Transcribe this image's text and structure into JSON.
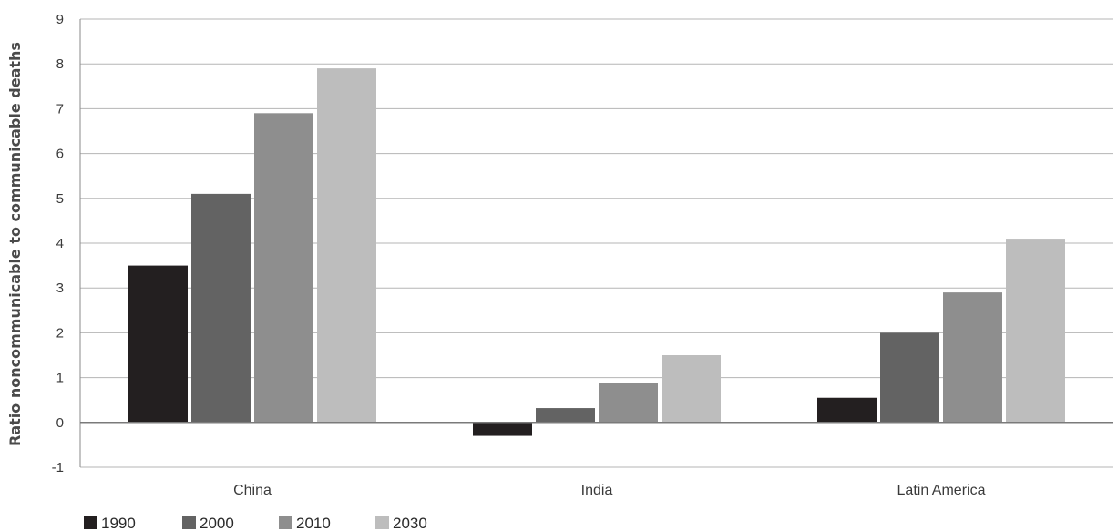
{
  "chart_data": {
    "type": "bar",
    "title": "",
    "xlabel": "",
    "ylabel": "Ratio noncommunicable to communicable deaths",
    "ylim": [
      -1,
      9
    ],
    "yticks": [
      -1,
      0,
      1,
      2,
      3,
      4,
      5,
      6,
      7,
      8,
      9
    ],
    "grid": true,
    "legend_position": "bottom-left",
    "categories": [
      "China",
      "India",
      "Latin America"
    ],
    "series": [
      {
        "name": "1990",
        "color": "#231f20",
        "values": [
          3.5,
          -0.3,
          0.55
        ]
      },
      {
        "name": "2000",
        "color": "#636363",
        "values": [
          5.1,
          0.32,
          2.0
        ]
      },
      {
        "name": "2010",
        "color": "#8e8e8e",
        "values": [
          6.9,
          0.87,
          2.9
        ]
      },
      {
        "name": "2030",
        "color": "#bdbdbd",
        "values": [
          7.9,
          1.5,
          4.1
        ]
      }
    ]
  }
}
